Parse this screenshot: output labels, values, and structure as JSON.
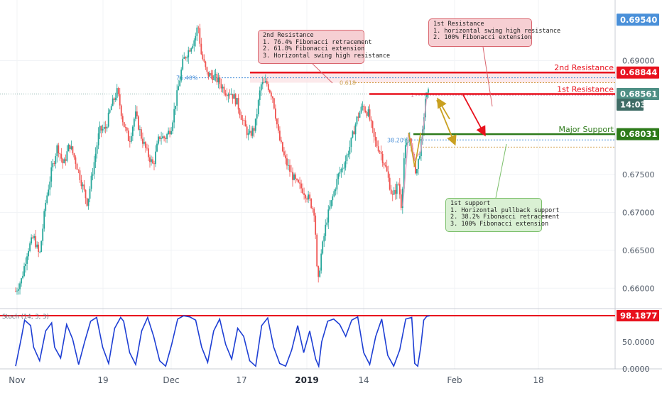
{
  "chart_data": {
    "type": "candlestick",
    "symbol_hint": "",
    "price_axis": {
      "ticks": [
        "0.69000",
        "0.67500",
        "0.67000",
        "0.66500",
        "0.66000"
      ],
      "tick_values": [
        0.69,
        0.675,
        0.67,
        0.665,
        0.66
      ],
      "ylim": [
        0.6575,
        0.698
      ]
    },
    "time_axis": {
      "labels": [
        "Nov",
        "19",
        "Dec",
        "17",
        "2019",
        "14",
        "Feb",
        "18"
      ],
      "bold_labels": [
        "2019"
      ]
    },
    "price_tags": [
      {
        "key": "top",
        "value": "0.69540",
        "price": 0.6954,
        "color": "#4a90d9"
      },
      {
        "key": "second_resistance",
        "value": "0.68844",
        "price": 0.68844,
        "color": "#e8121e"
      },
      {
        "key": "first_resistance",
        "value": "0.68561",
        "price": 0.68561,
        "color": "#4e8f85"
      },
      {
        "key": "countdown",
        "value": "14:03",
        "price": 0.6842,
        "color": "#3f6c66"
      },
      {
        "key": "major_support",
        "value": "0.68031",
        "price": 0.68031,
        "color": "#2d7a1a"
      }
    ],
    "levels": [
      {
        "name": "2nd Resistance",
        "price": 0.68844,
        "color": "#e8121e"
      },
      {
        "name": "1st Resistance",
        "price": 0.68561,
        "color": "#e8121e"
      },
      {
        "name": "Major Support",
        "price": 0.68031,
        "color": "#2d7a1a"
      }
    ],
    "fib_labels": [
      {
        "text": "76.40%",
        "price": 0.68775,
        "color": "#4a90d9"
      },
      {
        "text": "0.618",
        "price": 0.6871,
        "color": "#c9a050"
      },
      {
        "text": "38.20%",
        "price": 0.67955,
        "color": "#4a90d9"
      },
      {
        "text": "1",
        "price": 0.68545,
        "color": "#d48fb0"
      }
    ],
    "annotations": {
      "second_resistance_note": [
        "2nd Resistance",
        "1. 76.4% Fibonacci retracement",
        "2. 61.8% Fibonacci extension",
        "3. Horizontal swing high resistance"
      ],
      "first_resistance_note": [
        "1st Resistance",
        "1. horizontal swing high resistance",
        "2. 100% Fibonacci extension"
      ],
      "first_support_note": [
        "1st support",
        "1. Horizontal pullback support",
        "2. 38.2% Fibonacci retracement",
        "3. 100% Fibonacci extension"
      ]
    },
    "oscillator": {
      "label": "Stoch (14, 3, 3)",
      "ticks": [
        "50.0000",
        "0.0000"
      ],
      "tick_values": [
        50,
        0
      ],
      "current": "98.1877",
      "current_value": 98.19,
      "ylim": [
        0,
        110
      ],
      "line_color": "#1e3fd4"
    },
    "close_path": [
      [
        0,
        0.6596
      ],
      [
        2,
        0.6612
      ],
      [
        4,
        0.665
      ],
      [
        6,
        0.6668
      ],
      [
        8,
        0.6642
      ],
      [
        10,
        0.6712
      ],
      [
        12,
        0.6755
      ],
      [
        14,
        0.6788
      ],
      [
        16,
        0.6762
      ],
      [
        18,
        0.679
      ],
      [
        20,
        0.6768
      ],
      [
        22,
        0.674
      ],
      [
        24,
        0.6712
      ],
      [
        26,
        0.676
      ],
      [
        28,
        0.6808
      ],
      [
        30,
        0.681
      ],
      [
        32,
        0.684
      ],
      [
        34,
        0.686
      ],
      [
        36,
        0.6818
      ],
      [
        38,
        0.6794
      ],
      [
        40,
        0.683
      ],
      [
        42,
        0.68
      ],
      [
        44,
        0.6778
      ],
      [
        46,
        0.6762
      ],
      [
        48,
        0.68
      ],
      [
        50,
        0.6798
      ],
      [
        52,
        0.6812
      ],
      [
        54,
        0.6856
      ],
      [
        56,
        0.69
      ],
      [
        58,
        0.6915
      ],
      [
        60,
        0.693
      ],
      [
        61,
        0.6948
      ],
      [
        62,
        0.691
      ],
      [
        64,
        0.6882
      ],
      [
        66,
        0.688
      ],
      [
        68,
        0.6872
      ],
      [
        70,
        0.686
      ],
      [
        72,
        0.6858
      ],
      [
        74,
        0.6845
      ],
      [
        76,
        0.682
      ],
      [
        78,
        0.68
      ],
      [
        80,
        0.6812
      ],
      [
        82,
        0.6868
      ],
      [
        84,
        0.687
      ],
      [
        86,
        0.6852
      ],
      [
        88,
        0.68
      ],
      [
        90,
        0.677
      ],
      [
        92,
        0.6752
      ],
      [
        94,
        0.6738
      ],
      [
        96,
        0.673
      ],
      [
        98,
        0.6718
      ],
      [
        100,
        0.67
      ],
      [
        101,
        0.66
      ],
      [
        102,
        0.664
      ],
      [
        104,
        0.669
      ],
      [
        106,
        0.672
      ],
      [
        108,
        0.675
      ],
      [
        110,
        0.6765
      ],
      [
        112,
        0.679
      ],
      [
        114,
        0.6822
      ],
      [
        116,
        0.684
      ],
      [
        118,
        0.683
      ],
      [
        120,
        0.6795
      ],
      [
        122,
        0.678
      ],
      [
        124,
        0.6755
      ],
      [
        126,
        0.672
      ],
      [
        128,
        0.6738
      ],
      [
        129,
        0.6708
      ],
      [
        130,
        0.678
      ],
      [
        132,
        0.68
      ],
      [
        133,
        0.6765
      ],
      [
        134,
        0.6753
      ],
      [
        136,
        0.68
      ],
      [
        137,
        0.685
      ],
      [
        138,
        0.6857
      ]
    ],
    "osc_path": [
      [
        0,
        5
      ],
      [
        2,
        60
      ],
      [
        3,
        90
      ],
      [
        5,
        80
      ],
      [
        6,
        40
      ],
      [
        8,
        15
      ],
      [
        10,
        70
      ],
      [
        12,
        85
      ],
      [
        13,
        40
      ],
      [
        15,
        20
      ],
      [
        17,
        82
      ],
      [
        19,
        55
      ],
      [
        21,
        8
      ],
      [
        23,
        50
      ],
      [
        25,
        88
      ],
      [
        27,
        95
      ],
      [
        29,
        40
      ],
      [
        31,
        10
      ],
      [
        33,
        75
      ],
      [
        35,
        95
      ],
      [
        36,
        88
      ],
      [
        38,
        30
      ],
      [
        40,
        8
      ],
      [
        42,
        70
      ],
      [
        44,
        95
      ],
      [
        46,
        60
      ],
      [
        48,
        15
      ],
      [
        50,
        5
      ],
      [
        52,
        45
      ],
      [
        54,
        92
      ],
      [
        56,
        98
      ],
      [
        58,
        96
      ],
      [
        60,
        90
      ],
      [
        62,
        40
      ],
      [
        64,
        12
      ],
      [
        66,
        70
      ],
      [
        68,
        92
      ],
      [
        70,
        45
      ],
      [
        72,
        18
      ],
      [
        74,
        75
      ],
      [
        76,
        60
      ],
      [
        78,
        15
      ],
      [
        80,
        5
      ],
      [
        82,
        80
      ],
      [
        84,
        94
      ],
      [
        86,
        40
      ],
      [
        88,
        10
      ],
      [
        90,
        5
      ],
      [
        92,
        35
      ],
      [
        94,
        80
      ],
      [
        96,
        30
      ],
      [
        98,
        70
      ],
      [
        100,
        18
      ],
      [
        101,
        5
      ],
      [
        102,
        50
      ],
      [
        104,
        88
      ],
      [
        106,
        92
      ],
      [
        108,
        82
      ],
      [
        110,
        60
      ],
      [
        112,
        90
      ],
      [
        114,
        96
      ],
      [
        116,
        30
      ],
      [
        118,
        8
      ],
      [
        120,
        60
      ],
      [
        122,
        92
      ],
      [
        124,
        25
      ],
      [
        126,
        5
      ],
      [
        128,
        35
      ],
      [
        130,
        92
      ],
      [
        132,
        95
      ],
      [
        133,
        10
      ],
      [
        134,
        5
      ],
      [
        135,
        40
      ],
      [
        136,
        90
      ],
      [
        137,
        97
      ],
      [
        138,
        98
      ]
    ]
  }
}
